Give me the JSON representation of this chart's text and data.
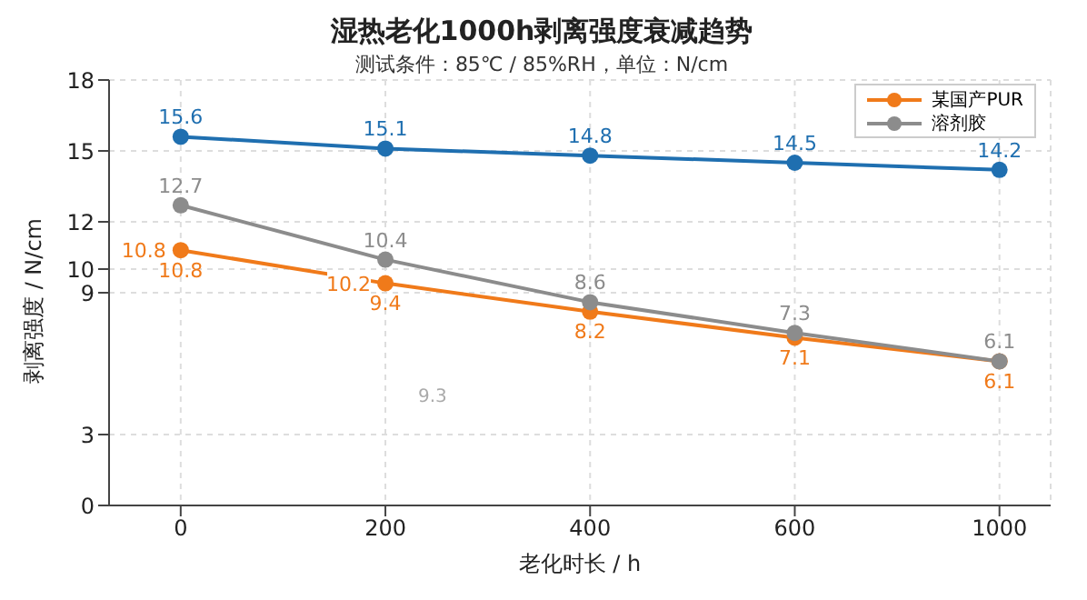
{
  "chart_data": {
    "type": "line",
    "title": "湿热老化1000h剥离强度衰减趋势",
    "subtitle": "测试条件：85℃ / 85%RH，单位：N/cm",
    "xlabel": "老化时长 / h",
    "ylabel": "剥离强度 / N/cm",
    "categories": [
      "0",
      "200",
      "400",
      "600",
      "1000"
    ],
    "series": [
      {
        "color": "#1f6fb0",
        "values": [
          15.6,
          15.1,
          14.8,
          14.5,
          14.2
        ]
      },
      {
        "name": "某国产PUR",
        "color": "#f07a1a",
        "values": [
          10.8,
          9.4,
          8.2,
          7.1,
          6.1
        ]
      },
      {
        "name": "溶剂胶",
        "color": "#8c8c8c",
        "values": [
          12.7,
          10.4,
          8.6,
          7.3,
          6.1
        ]
      }
    ],
    "annotations": [
      {
        "text": "10.8",
        "x": "0",
        "y": 10.8
      },
      {
        "text": "10.2",
        "x": "200",
        "y": 9.4
      },
      "9.3"
    ],
    "ylim": [
      0,
      18
    ],
    "yticks": [
      0,
      3,
      9,
      10,
      12,
      15,
      18
    ],
    "grid": true,
    "legend": "top right",
    "marker": "circle",
    "line_style": "solid",
    "data_labels": true
  }
}
